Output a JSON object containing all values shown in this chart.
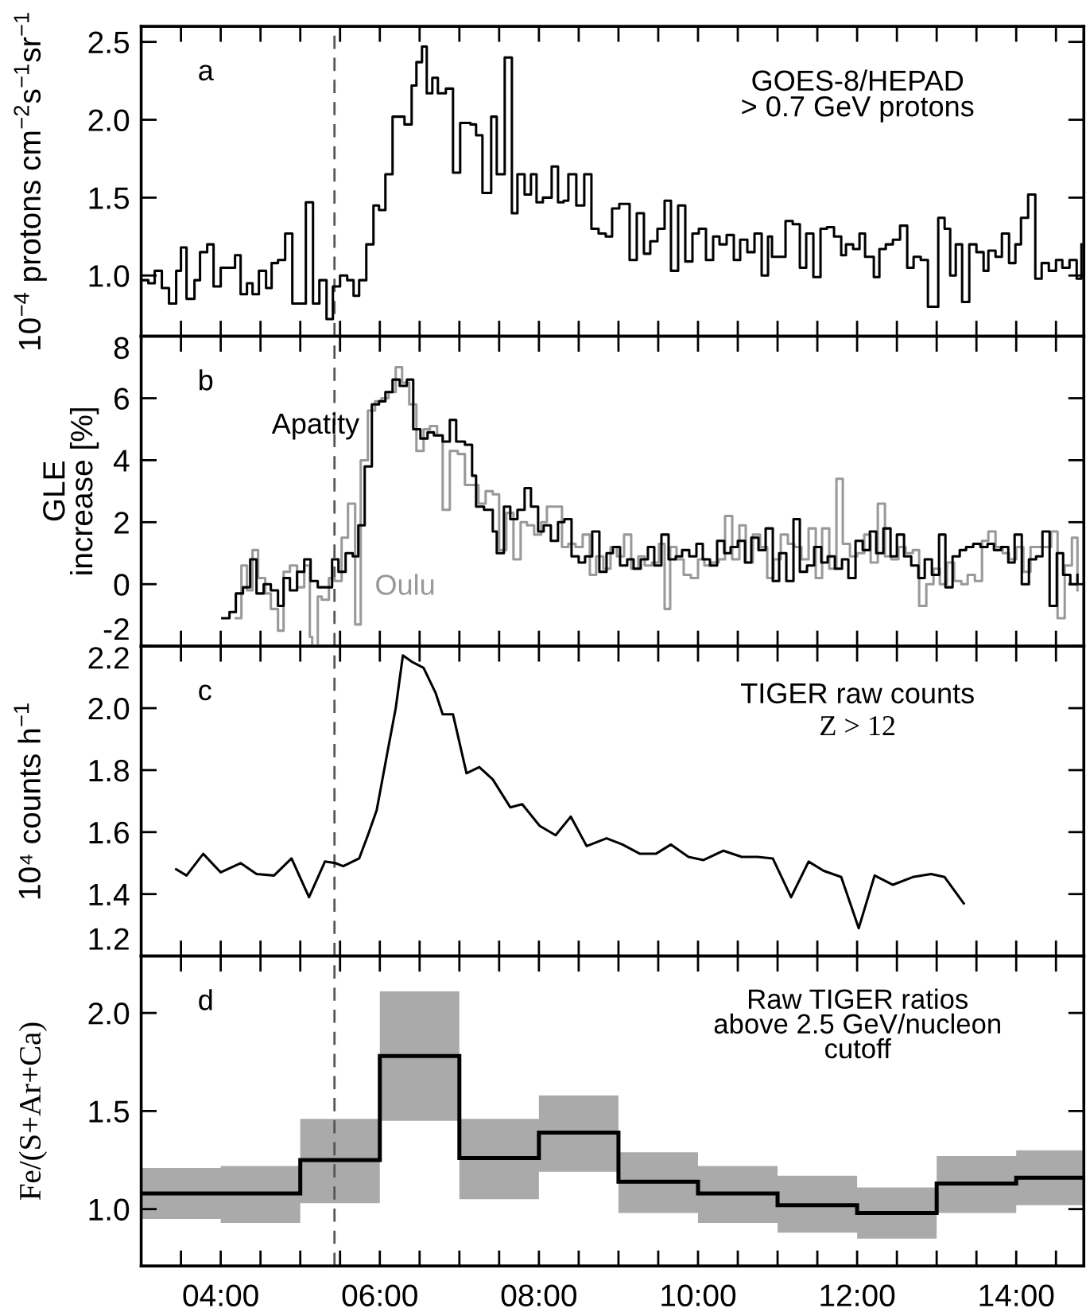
{
  "chart_data": [
    {
      "type": "step",
      "ylabel": "10$^{−4}$ protons cm$^{−2}$s$^{−1}$sr$^{−1}$",
      "annotations": [
        "a",
        "GOES-8/HEPAD\n> 0.7 GeV protons"
      ],
      "xlim": [
        3,
        14.85
      ],
      "xticks": [
        {
          "value": 3.5,
          "label": null
        },
        {
          "value": 4,
          "label": null
        },
        {
          "value": 4.5,
          "label": null
        },
        {
          "value": 5,
          "label": null
        },
        {
          "value": 5.5,
          "label": null
        },
        {
          "value": 6,
          "label": null
        },
        {
          "value": 6.5,
          "label": null
        },
        {
          "value": 7,
          "label": null
        },
        {
          "value": 7.5,
          "label": null
        },
        {
          "value": 8,
          "label": null
        },
        {
          "value": 8.5,
          "label": null
        },
        {
          "value": 9,
          "label": null
        },
        {
          "value": 9.5,
          "label": null
        },
        {
          "value": 10,
          "label": null
        },
        {
          "value": 10.5,
          "label": null
        },
        {
          "value": 11,
          "label": null
        },
        {
          "value": 11.5,
          "label": null
        },
        {
          "value": 12,
          "label": null
        },
        {
          "value": 12.5,
          "label": null
        },
        {
          "value": 13,
          "label": null
        },
        {
          "value": 13.5,
          "label": null
        },
        {
          "value": 14,
          "label": null
        },
        {
          "value": 14.5,
          "label": null
        }
      ],
      "ylim": [
        0.61,
        2.6
      ],
      "yticks": [
        {
          "value": 1.0,
          "label": "1.0"
        },
        {
          "value": 1.5,
          "label": "1.5"
        },
        {
          "value": 2.0,
          "label": "2.0"
        },
        {
          "value": 2.5,
          "label": "2.5"
        }
      ],
      "tick_labels": "y",
      "ref_lines": [
        {
          "axis": "x",
          "value": 5.43,
          "label": null,
          "color": "#555555",
          "line_style": "dashed"
        }
      ],
      "series": [
        {
          "color": "#000000",
          "x": [
            3.0,
            3.09,
            3.17,
            3.26,
            3.35,
            3.44,
            3.5,
            3.57,
            3.67,
            3.74,
            3.83,
            3.91,
            4.0,
            4.09,
            4.18,
            4.25,
            4.33,
            4.4,
            4.48,
            4.57,
            4.64,
            4.72,
            4.81,
            4.9,
            4.99,
            5.07,
            5.16,
            5.24,
            5.33,
            5.41,
            5.5,
            5.59,
            5.67,
            5.74,
            5.83,
            5.92,
            5.99,
            6.07,
            6.16,
            6.31,
            6.4,
            6.46,
            6.53,
            6.59,
            6.66,
            6.73,
            6.83,
            6.92,
            7.01,
            7.14,
            7.21,
            7.29,
            7.4,
            7.47,
            7.57,
            7.66,
            7.73,
            7.82,
            7.9,
            7.97,
            8.05,
            8.16,
            8.24,
            8.31,
            8.37,
            8.47,
            8.57,
            8.66,
            8.75,
            8.84,
            8.92,
            9.01,
            9.14,
            9.23,
            9.32,
            9.4,
            9.49,
            9.58,
            9.66,
            9.75,
            9.84,
            9.93,
            10.01,
            10.1,
            10.19,
            10.27,
            10.36,
            10.45,
            10.53,
            10.62,
            10.71,
            10.8,
            10.88,
            10.93,
            11.01,
            11.1,
            11.19,
            11.28,
            11.36,
            11.45,
            11.54,
            11.62,
            11.71,
            11.8,
            11.86,
            11.95,
            12.03,
            12.1,
            12.21,
            12.28,
            12.36,
            12.45,
            12.54,
            12.63,
            12.71,
            12.8,
            12.89,
            13.02,
            13.1,
            13.17,
            13.24,
            13.32,
            13.41,
            13.5,
            13.59,
            13.65,
            13.74,
            13.82,
            13.91,
            13.99,
            14.06,
            14.15,
            14.24,
            14.32,
            14.41,
            14.5,
            14.58,
            14.67,
            14.76,
            14.82
          ],
          "values": [
            0.97,
            0.95,
            1.03,
            0.92,
            0.82,
            1.03,
            1.18,
            0.85,
            0.97,
            1.15,
            1.2,
            0.93,
            1.05,
            1.05,
            1.13,
            0.88,
            0.95,
            0.88,
            1.03,
            0.92,
            1.08,
            1.1,
            1.27,
            0.82,
            0.82,
            1.47,
            0.82,
            0.97,
            0.72,
            0.93,
            1.0,
            0.97,
            0.87,
            0.97,
            1.2,
            1.45,
            1.42,
            1.65,
            2.02,
            1.97,
            2.22,
            2.37,
            2.47,
            2.17,
            2.27,
            2.17,
            2.2,
            1.66,
            1.98,
            1.97,
            1.9,
            1.53,
            2.02,
            1.65,
            2.4,
            1.4,
            1.65,
            1.52,
            1.65,
            1.47,
            1.5,
            1.7,
            1.47,
            1.48,
            1.65,
            1.45,
            1.65,
            1.3,
            1.27,
            1.25,
            1.43,
            1.46,
            1.1,
            1.4,
            1.14,
            1.22,
            1.3,
            1.48,
            1.03,
            1.45,
            1.09,
            1.27,
            1.3,
            1.1,
            1.25,
            1.2,
            1.26,
            1.1,
            1.23,
            1.15,
            1.27,
            1.0,
            1.25,
            1.12,
            1.12,
            1.35,
            1.33,
            1.05,
            1.27,
            0.99,
            1.3,
            1.31,
            1.25,
            1.13,
            1.2,
            1.17,
            1.27,
            1.12,
            0.99,
            1.17,
            1.2,
            1.23,
            1.32,
            1.05,
            1.12,
            1.1,
            0.8,
            1.37,
            1.3,
            1.0,
            1.2,
            0.83,
            1.2,
            1.15,
            1.03,
            1.16,
            1.12,
            1.27,
            1.08,
            1.2,
            1.37,
            1.52,
            0.98,
            1.08,
            1.03,
            1.1,
            1.05,
            1.1,
            0.98,
            1.2
          ]
        }
      ]
    },
    {
      "type": "step",
      "ylabel": "GLE\nincrease [%]",
      "annotations": [
        "b"
      ],
      "xlim": [
        3,
        14.85
      ],
      "xticks": [
        {
          "value": 3.5,
          "label": null
        },
        {
          "value": 4,
          "label": null
        },
        {
          "value": 4.5,
          "label": null
        },
        {
          "value": 5,
          "label": null
        },
        {
          "value": 5.5,
          "label": null
        },
        {
          "value": 6,
          "label": null
        },
        {
          "value": 6.5,
          "label": null
        },
        {
          "value": 7,
          "label": null
        },
        {
          "value": 7.5,
          "label": null
        },
        {
          "value": 8,
          "label": null
        },
        {
          "value": 8.5,
          "label": null
        },
        {
          "value": 9,
          "label": null
        },
        {
          "value": 9.5,
          "label": null
        },
        {
          "value": 10,
          "label": null
        },
        {
          "value": 10.5,
          "label": null
        },
        {
          "value": 11,
          "label": null
        },
        {
          "value": 11.5,
          "label": null
        },
        {
          "value": 12,
          "label": null
        },
        {
          "value": 12.5,
          "label": null
        },
        {
          "value": 13,
          "label": null
        },
        {
          "value": 13.5,
          "label": null
        },
        {
          "value": 14,
          "label": null
        },
        {
          "value": 14.5,
          "label": null
        }
      ],
      "ylim": [
        -2,
        8
      ],
      "yticks": [
        -2,
        0,
        2,
        4,
        6,
        8
      ],
      "tick_labels": "y",
      "ref_lines": [
        {
          "axis": "x",
          "value": 5.43,
          "label": null,
          "color": "#555555",
          "line_style": "dashed"
        }
      ],
      "series": [
        {
          "name": "Oulu",
          "color": "#999999",
          "x": [
            4.19,
            4.26,
            4.33,
            4.4,
            4.47,
            4.56,
            4.63,
            4.72,
            4.79,
            4.87,
            4.96,
            5.05,
            5.12,
            5.15,
            5.22,
            5.27,
            5.36,
            5.43,
            5.52,
            5.6,
            5.69,
            5.76,
            5.85,
            5.94,
            6.02,
            6.11,
            6.2,
            6.28,
            6.37,
            6.46,
            6.55,
            6.63,
            6.72,
            6.79,
            6.88,
            6.98,
            7.07,
            7.16,
            7.24,
            7.33,
            7.42,
            7.5,
            7.59,
            7.68,
            7.77,
            7.85,
            7.94,
            8.03,
            8.1,
            8.18,
            8.29,
            8.37,
            8.46,
            8.55,
            8.64,
            8.72,
            8.81,
            8.9,
            8.98,
            9.07,
            9.16,
            9.25,
            9.33,
            9.42,
            9.51,
            9.58,
            9.65,
            9.73,
            9.82,
            9.91,
            10.0,
            10.08,
            10.17,
            10.26,
            10.34,
            10.43,
            10.52,
            10.6,
            10.69,
            10.78,
            10.87,
            10.95,
            11.04,
            11.13,
            11.21,
            11.3,
            11.39,
            11.48,
            11.56,
            11.65,
            11.74,
            11.82,
            11.91,
            12.0,
            12.09,
            12.17,
            12.26,
            12.35,
            12.43,
            12.52,
            12.61,
            12.7,
            12.78,
            12.87,
            12.96,
            13.04,
            13.13,
            13.22,
            13.31,
            13.39,
            13.48,
            13.57,
            13.65,
            13.74,
            13.83,
            13.91,
            14.0,
            14.09,
            14.18,
            14.26,
            14.35,
            14.44,
            14.52,
            14.61,
            14.7,
            14.77
          ],
          "values": [
            -1.1,
            0.6,
            -0.2,
            1.1,
            0.2,
            -0.3,
            -0.8,
            -1.5,
            0.4,
            0.6,
            -0.1,
            0.6,
            -1.7,
            -2.0,
            -0.4,
            -0.5,
            0.2,
            0.1,
            1.5,
            2.6,
            -1.3,
            4.0,
            5.6,
            5.9,
            6.0,
            6.2,
            7.0,
            6.5,
            5.8,
            4.3,
            5.0,
            5.1,
            4.8,
            2.4,
            4.3,
            4.2,
            3.2,
            3.2,
            2.6,
            3.0,
            2.9,
            1.1,
            2.3,
            0.8,
            2.0,
            1.9,
            1.6,
            2.0,
            2.5,
            2.5,
            1.2,
            1.3,
            1.2,
            1.6,
            0.3,
            0.9,
            0.5,
            1.2,
            0.9,
            1.6,
            0.5,
            0.9,
            0.6,
            0.7,
            1.3,
            -0.8,
            1.2,
            0.8,
            0.3,
            0.2,
            0.8,
            0.6,
            0.7,
            0.8,
            2.2,
            0.8,
            1.9,
            0.7,
            1.6,
            1.2,
            0.2,
            0.8,
            1.6,
            1.3,
            1.2,
            0.8,
            1.8,
            0.2,
            1.8,
            0.5,
            3.4,
            1.3,
            0.9,
            1.0,
            1.6,
            0.7,
            2.6,
            0.9,
            0.8,
            1.2,
            1.0,
            1.1,
            -0.7,
            0.0,
            0.5,
            0.0,
            0.7,
            0.1,
            0.0,
            0.3,
            0.1,
            1.4,
            1.7,
            1.2,
            1.0,
            0.8,
            1.2,
            0.4,
            1.2,
            1.2,
            1.2,
            1.7,
            -1.1,
            0.6,
            1.5,
            -0.2
          ]
        },
        {
          "name": "Apatity",
          "color": "#000000",
          "x": [
            4.02,
            4.11,
            4.19,
            4.28,
            4.37,
            4.45,
            4.54,
            4.63,
            4.72,
            4.79,
            4.87,
            4.96,
            5.05,
            5.13,
            5.22,
            5.31,
            5.4,
            5.48,
            5.57,
            5.66,
            5.73,
            5.81,
            5.9,
            5.99,
            6.07,
            6.16,
            6.25,
            6.34,
            6.42,
            6.51,
            6.6,
            6.68,
            6.79,
            6.88,
            6.96,
            7.07,
            7.16,
            7.21,
            7.31,
            7.42,
            7.47,
            7.56,
            7.64,
            7.73,
            7.82,
            7.9,
            7.99,
            8.06,
            8.15,
            8.24,
            8.32,
            8.41,
            8.5,
            8.58,
            8.67,
            8.76,
            8.85,
            8.93,
            9.02,
            9.11,
            9.19,
            9.28,
            9.37,
            9.45,
            9.54,
            9.63,
            9.72,
            9.8,
            9.89,
            9.98,
            10.06,
            10.15,
            10.24,
            10.33,
            10.41,
            10.5,
            10.59,
            10.67,
            10.76,
            10.85,
            10.94,
            11.02,
            11.11,
            11.2,
            11.28,
            11.37,
            11.46,
            11.55,
            11.63,
            11.72,
            11.81,
            11.89,
            11.98,
            12.07,
            12.16,
            12.24,
            12.33,
            12.42,
            12.5,
            12.59,
            12.68,
            12.77,
            12.85,
            12.94,
            13.03,
            13.11,
            13.2,
            13.29,
            13.37,
            13.46,
            13.55,
            13.64,
            13.72,
            13.81,
            13.9,
            13.98,
            14.07,
            14.16,
            14.25,
            14.33,
            14.42,
            14.51,
            14.59,
            14.68,
            14.77
          ],
          "values": [
            -1.1,
            -0.9,
            -0.3,
            -0.1,
            0.8,
            -0.3,
            0.0,
            -0.2,
            -0.7,
            0.2,
            -0.2,
            0.4,
            0.8,
            0.1,
            -0.1,
            -0.1,
            0.8,
            0.4,
            1.0,
            0.9,
            1.9,
            3.8,
            5.8,
            5.9,
            6.2,
            6.6,
            6.4,
            6.6,
            5.0,
            4.7,
            4.9,
            4.8,
            4.6,
            5.3,
            4.6,
            4.5,
            3.5,
            2.5,
            2.4,
            1.7,
            1.0,
            2.5,
            2.1,
            2.4,
            3.1,
            2.5,
            1.7,
            1.9,
            1.4,
            2.0,
            2.1,
            0.9,
            0.7,
            0.9,
            1.7,
            0.4,
            1.0,
            1.2,
            0.6,
            0.8,
            0.5,
            0.8,
            1.2,
            0.6,
            1.6,
            0.8,
            0.9,
            1.1,
            0.9,
            1.3,
            0.8,
            0.6,
            1.4,
            1.0,
            1.2,
            1.4,
            0.7,
            1.5,
            1.1,
            1.8,
            0.1,
            1.0,
            0.1,
            2.1,
            0.4,
            0.6,
            1.2,
            0.7,
            0.9,
            0.5,
            0.8,
            0.2,
            1.4,
            1.1,
            1.7,
            1.0,
            1.8,
            0.9,
            1.6,
            0.9,
            0.6,
            0.2,
            0.8,
            0.3,
            1.6,
            -0.1,
            0.9,
            1.1,
            1.2,
            1.3,
            1.2,
            1.3,
            1.1,
            1.2,
            0.7,
            1.6,
            0.0,
            0.8,
            0.9,
            1.7,
            -0.7,
            1.0,
            0.3,
            0.0,
            0.3
          ]
        }
      ]
    },
    {
      "type": "line",
      "ylabel": "10⁴ counts h$^{−1}$",
      "annotations": [
        "c",
        "TIGER raw counts",
        "Z > 12"
      ],
      "xlim": [
        3,
        14.85
      ],
      "xticks": [
        {
          "value": 3.5,
          "label": null
        },
        {
          "value": 4,
          "label": null
        },
        {
          "value": 4.5,
          "label": null
        },
        {
          "value": 5,
          "label": null
        },
        {
          "value": 5.5,
          "label": null
        },
        {
          "value": 6,
          "label": null
        },
        {
          "value": 6.5,
          "label": null
        },
        {
          "value": 7,
          "label": null
        },
        {
          "value": 7.5,
          "label": null
        },
        {
          "value": 8,
          "label": null
        },
        {
          "value": 8.5,
          "label": null
        },
        {
          "value": 9,
          "label": null
        },
        {
          "value": 9.5,
          "label": null
        },
        {
          "value": 10,
          "label": null
        },
        {
          "value": 10.5,
          "label": null
        },
        {
          "value": 11,
          "label": null
        },
        {
          "value": 11.5,
          "label": null
        },
        {
          "value": 12,
          "label": null
        },
        {
          "value": 12.5,
          "label": null
        },
        {
          "value": 13,
          "label": null
        },
        {
          "value": 13.5,
          "label": null
        },
        {
          "value": 14,
          "label": null
        },
        {
          "value": 14.5,
          "label": null
        }
      ],
      "ylim": [
        1.2,
        2.2
      ],
      "yticks": [
        {
          "value": 1.2,
          "label": "1.2"
        },
        {
          "value": 1.4,
          "label": "1.4"
        },
        {
          "value": 1.6,
          "label": "1.6"
        },
        {
          "value": 1.8,
          "label": "1.8"
        },
        {
          "value": 2.0,
          "label": "2.0"
        },
        {
          "value": 2.2,
          "label": "2.2"
        }
      ],
      "tick_labels": "y",
      "ref_lines": [
        {
          "axis": "x",
          "value": 5.43,
          "label": null,
          "color": "#555555",
          "line_style": "dashed"
        }
      ],
      "series": [
        {
          "color": "#000000",
          "x": [
            3.44,
            3.57,
            3.78,
            4.0,
            4.25,
            4.45,
            4.67,
            4.89,
            5.11,
            5.31,
            5.44,
            5.54,
            5.74,
            5.85,
            5.96,
            6.09,
            6.2,
            6.29,
            6.4,
            6.55,
            6.7,
            6.79,
            6.92,
            7.09,
            7.25,
            7.42,
            7.64,
            7.79,
            8.01,
            8.21,
            8.4,
            8.6,
            8.85,
            9.05,
            9.27,
            9.47,
            9.66,
            9.88,
            10.07,
            10.32,
            10.55,
            10.75,
            10.94,
            11.17,
            11.39,
            11.58,
            11.8,
            12.02,
            12.22,
            12.45,
            12.7,
            12.93,
            13.1,
            13.34
          ],
          "values": [
            1.48,
            1.46,
            1.53,
            1.47,
            1.5,
            1.465,
            1.46,
            1.515,
            1.39,
            1.505,
            1.5,
            1.49,
            1.515,
            1.59,
            1.67,
            1.85,
            2.0,
            2.17,
            2.15,
            2.13,
            2.05,
            1.98,
            1.98,
            1.79,
            1.81,
            1.77,
            1.68,
            1.69,
            1.62,
            1.59,
            1.65,
            1.555,
            1.58,
            1.56,
            1.53,
            1.53,
            1.56,
            1.52,
            1.51,
            1.54,
            1.52,
            1.52,
            1.515,
            1.39,
            1.505,
            1.475,
            1.455,
            1.29,
            1.46,
            1.43,
            1.455,
            1.465,
            1.455,
            1.37
          ]
        }
      ]
    },
    {
      "type": "step",
      "ylabel": "Fe/(S+Ar+Ca)",
      "annotations": [
        "d",
        "Raw TIGER ratios\nabove 2.5 GeV/nucleon\ncutoff"
      ],
      "xlim": [
        3,
        14.85
      ],
      "xticks": [
        {
          "value": 3.5,
          "label": null
        },
        {
          "value": 4,
          "label": "04:00"
        },
        {
          "value": 4.5,
          "label": null
        },
        {
          "value": 5,
          "label": null
        },
        {
          "value": 5.5,
          "label": null
        },
        {
          "value": 6,
          "label": "06:00"
        },
        {
          "value": 6.5,
          "label": null
        },
        {
          "value": 7,
          "label": null
        },
        {
          "value": 7.5,
          "label": null
        },
        {
          "value": 8,
          "label": "08:00"
        },
        {
          "value": 8.5,
          "label": null
        },
        {
          "value": 9,
          "label": null
        },
        {
          "value": 9.5,
          "label": null
        },
        {
          "value": 10,
          "label": "10:00"
        },
        {
          "value": 10.5,
          "label": null
        },
        {
          "value": 11,
          "label": null
        },
        {
          "value": 11.5,
          "label": null
        },
        {
          "value": 12,
          "label": "12:00"
        },
        {
          "value": 12.5,
          "label": null
        },
        {
          "value": 13,
          "label": null
        },
        {
          "value": 13.5,
          "label": null
        },
        {
          "value": 14,
          "label": "14:00"
        },
        {
          "value": 14.5,
          "label": null
        }
      ],
      "ylim": [
        0.71,
        2.29
      ],
      "yticks": [
        {
          "value": 1.0,
          "label": "1.0"
        },
        {
          "value": 1.5,
          "label": "1.5"
        },
        {
          "value": 2.0,
          "label": "2.0"
        }
      ],
      "ref_lines": [
        {
          "axis": "x",
          "value": 5.43,
          "label": null,
          "color": "#555555",
          "line_style": "dashed"
        }
      ],
      "series": [
        {
          "color": "#000000",
          "x": [
            3,
            4,
            5,
            6,
            7,
            8,
            9,
            10,
            11,
            12,
            13,
            14
          ],
          "values": [
            1.08,
            1.08,
            1.25,
            1.78,
            1.26,
            1.39,
            1.14,
            1.08,
            1.02,
            0.98,
            1.13,
            1.16
          ],
          "lower": [
            0.95,
            0.93,
            1.03,
            1.45,
            1.05,
            1.19,
            0.98,
            0.93,
            0.88,
            0.85,
            0.98,
            1.02
          ],
          "upper": [
            1.21,
            1.22,
            1.46,
            2.11,
            1.46,
            1.58,
            1.29,
            1.22,
            1.17,
            1.11,
            1.27,
            1.3
          ]
        }
      ]
    }
  ]
}
